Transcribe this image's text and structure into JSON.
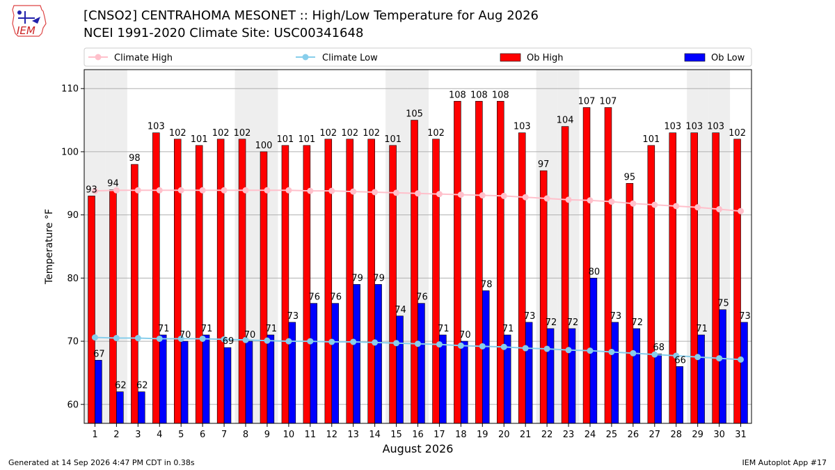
{
  "header": {
    "title": "[CNSO2] CENTRAHOMA MESONET :: High/Low Temperature for Aug 2026",
    "subtitle": "NCEI 1991-2020 Climate Site: USC00341648",
    "logo_text": "IEM"
  },
  "footer": {
    "generated": "Generated at 14 Sep 2026 4:47 PM CDT in 0.38s",
    "app": "IEM Autoplot App #17"
  },
  "chart_data": {
    "type": "bar",
    "xlabel": "August 2026",
    "ylabel": "Temperature °F",
    "ylim": [
      57,
      113
    ],
    "yticks": [
      60,
      70,
      80,
      90,
      100,
      110
    ],
    "categories": [
      "1",
      "2",
      "3",
      "4",
      "5",
      "6",
      "7",
      "8",
      "9",
      "10",
      "11",
      "12",
      "13",
      "14",
      "15",
      "16",
      "17",
      "18",
      "19",
      "20",
      "21",
      "22",
      "23",
      "24",
      "25",
      "26",
      "27",
      "28",
      "29",
      "30",
      "31"
    ],
    "shaded_days": [
      1,
      2,
      8,
      9,
      15,
      16,
      22,
      23,
      29,
      30
    ],
    "legend_position": "top",
    "grid": "horizontal",
    "series": [
      {
        "name": "Ob High",
        "kind": "bar",
        "color": "#ff0000",
        "values": [
          93,
          94,
          98,
          103,
          102,
          101,
          102,
          102,
          100,
          101,
          101,
          102,
          102,
          102,
          101,
          105,
          102,
          108,
          108,
          108,
          103,
          97,
          104,
          107,
          107,
          95,
          101,
          103,
          103,
          103,
          102
        ]
      },
      {
        "name": "Ob Low",
        "kind": "bar",
        "color": "#0000ff",
        "values": [
          67,
          62,
          62,
          71,
          70,
          71,
          69,
          70,
          71,
          73,
          76,
          76,
          79,
          79,
          74,
          76,
          71,
          70,
          78,
          71,
          73,
          72,
          72,
          80,
          73,
          72,
          68,
          66,
          71,
          75,
          73
        ]
      },
      {
        "name": "Climate High",
        "kind": "line",
        "color": "#ffc0cb",
        "values": [
          93.8,
          93.9,
          93.9,
          93.9,
          93.9,
          93.9,
          93.9,
          93.9,
          93.9,
          93.9,
          93.8,
          93.8,
          93.7,
          93.6,
          93.5,
          93.4,
          93.3,
          93.2,
          93.1,
          93.0,
          92.8,
          92.6,
          92.4,
          92.3,
          92.1,
          91.8,
          91.6,
          91.4,
          91.2,
          90.9,
          90.6
        ]
      },
      {
        "name": "Climate Low",
        "kind": "line",
        "color": "#87ceeb",
        "values": [
          70.6,
          70.5,
          70.5,
          70.4,
          70.4,
          70.4,
          70.3,
          70.2,
          70.1,
          70.0,
          70.0,
          69.9,
          69.9,
          69.8,
          69.7,
          69.6,
          69.5,
          69.3,
          69.2,
          69.1,
          68.9,
          68.8,
          68.6,
          68.5,
          68.3,
          68.1,
          67.9,
          67.7,
          67.5,
          67.3,
          67.1
        ]
      }
    ]
  }
}
